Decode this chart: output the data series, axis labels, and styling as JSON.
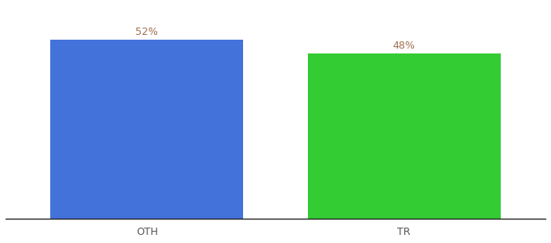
{
  "categories": [
    "OTH",
    "TR"
  ],
  "values": [
    52,
    48
  ],
  "bar_colors": [
    "#4472db",
    "#33cc33"
  ],
  "labels": [
    "52%",
    "48%"
  ],
  "ylim": [
    0,
    62
  ],
  "bar_width": 0.75,
  "x_positions": [
    0.0,
    1.0
  ],
  "label_fontsize": 9,
  "tick_fontsize": 9,
  "label_color": "#a07050",
  "background_color": "#ffffff",
  "xlim": [
    -0.55,
    1.55
  ]
}
